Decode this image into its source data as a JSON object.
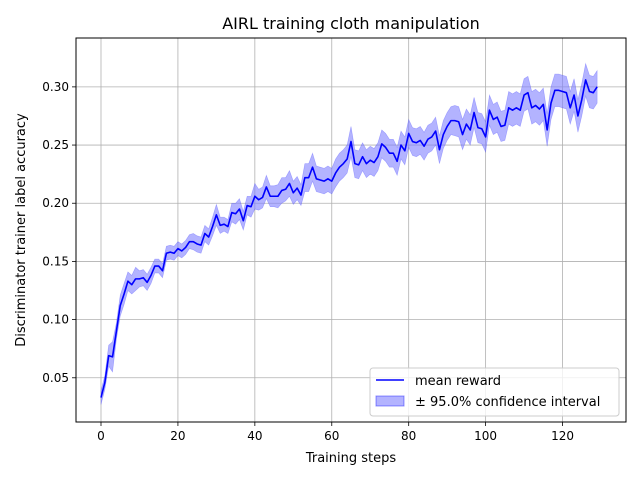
{
  "chart_data": {
    "type": "line",
    "title": "AIRL training cloth manipulation",
    "xlabel": "Training steps",
    "ylabel": "Discriminator trainer label accuracy",
    "xlim": [
      -6.5,
      136.5
    ],
    "ylim": [
      0.012,
      0.342
    ],
    "xticks": [
      0,
      20,
      40,
      60,
      80,
      100,
      120
    ],
    "yticks": [
      0.05,
      0.1,
      0.15,
      0.2,
      0.25,
      0.3
    ],
    "grid": true,
    "legend": {
      "placement": "lower-right"
    },
    "colors": {
      "line": "#0000ff",
      "band": "#8080ff"
    },
    "series": [
      {
        "name": "mean reward",
        "x": [
          0,
          1,
          2,
          3,
          4,
          5,
          6,
          7,
          8,
          9,
          10,
          11,
          12,
          13,
          14,
          15,
          16,
          17,
          18,
          19,
          20,
          21,
          22,
          23,
          24,
          25,
          26,
          27,
          28,
          29,
          30,
          31,
          32,
          33,
          34,
          35,
          36,
          37,
          38,
          39,
          40,
          41,
          42,
          43,
          44,
          45,
          46,
          47,
          48,
          49,
          50,
          51,
          52,
          53,
          54,
          55,
          56,
          57,
          58,
          59,
          60,
          61,
          62,
          63,
          64,
          65,
          66,
          67,
          68,
          69,
          70,
          71,
          72,
          73,
          74,
          75,
          76,
          77,
          78,
          79,
          80,
          81,
          82,
          83,
          84,
          85,
          86,
          87,
          88,
          89,
          90,
          91,
          92,
          93,
          94,
          95,
          96,
          97,
          98,
          99,
          100,
          101,
          102,
          103,
          104,
          105,
          106,
          107,
          108,
          109,
          110,
          111,
          112,
          113,
          114,
          115,
          116,
          117,
          118,
          119,
          120,
          121,
          122,
          123,
          124,
          125,
          126,
          127,
          128,
          129
        ],
        "y": [
          0.033,
          0.046,
          0.069,
          0.068,
          0.09,
          0.112,
          0.122,
          0.133,
          0.13,
          0.135,
          0.135,
          0.136,
          0.132,
          0.138,
          0.146,
          0.146,
          0.142,
          0.157,
          0.158,
          0.157,
          0.161,
          0.159,
          0.162,
          0.167,
          0.167,
          0.165,
          0.164,
          0.174,
          0.171,
          0.18,
          0.19,
          0.181,
          0.182,
          0.18,
          0.192,
          0.191,
          0.195,
          0.185,
          0.198,
          0.197,
          0.206,
          0.203,
          0.205,
          0.214,
          0.206,
          0.206,
          0.206,
          0.211,
          0.212,
          0.217,
          0.209,
          0.213,
          0.207,
          0.222,
          0.222,
          0.231,
          0.221,
          0.22,
          0.219,
          0.221,
          0.219,
          0.226,
          0.231,
          0.234,
          0.238,
          0.253,
          0.234,
          0.233,
          0.24,
          0.234,
          0.237,
          0.235,
          0.24,
          0.251,
          0.248,
          0.243,
          0.243,
          0.236,
          0.25,
          0.245,
          0.26,
          0.253,
          0.252,
          0.254,
          0.249,
          0.255,
          0.257,
          0.262,
          0.246,
          0.259,
          0.266,
          0.271,
          0.271,
          0.27,
          0.259,
          0.268,
          0.263,
          0.278,
          0.265,
          0.264,
          0.257,
          0.28,
          0.272,
          0.274,
          0.266,
          0.267,
          0.282,
          0.28,
          0.282,
          0.28,
          0.293,
          0.295,
          0.282,
          0.284,
          0.281,
          0.285,
          0.263,
          0.286,
          0.297,
          0.297,
          0.296,
          0.295,
          0.282,
          0.293,
          0.275,
          0.289,
          0.306,
          0.296,
          0.295,
          0.3
        ]
      },
      {
        "name": "± 95.0% confidence interval",
        "x": [
          0,
          1,
          2,
          3,
          4,
          5,
          6,
          7,
          8,
          9,
          10,
          11,
          12,
          13,
          14,
          15,
          16,
          17,
          18,
          19,
          20,
          21,
          22,
          23,
          24,
          25,
          26,
          27,
          28,
          29,
          30,
          31,
          32,
          33,
          34,
          35,
          36,
          37,
          38,
          39,
          40,
          41,
          42,
          43,
          44,
          45,
          46,
          47,
          48,
          49,
          50,
          51,
          52,
          53,
          54,
          55,
          56,
          57,
          58,
          59,
          60,
          61,
          62,
          63,
          64,
          65,
          66,
          67,
          68,
          69,
          70,
          71,
          72,
          73,
          74,
          75,
          76,
          77,
          78,
          79,
          80,
          81,
          82,
          83,
          84,
          85,
          86,
          87,
          88,
          89,
          90,
          91,
          92,
          93,
          94,
          95,
          96,
          97,
          98,
          99,
          100,
          101,
          102,
          103,
          104,
          105,
          106,
          107,
          108,
          109,
          110,
          111,
          112,
          113,
          114,
          115,
          116,
          117,
          118,
          119,
          120,
          121,
          122,
          123,
          124,
          125,
          126,
          127,
          128,
          129
        ],
        "lower": [
          0.027,
          0.04,
          0.06,
          0.055,
          0.083,
          0.103,
          0.113,
          0.125,
          0.122,
          0.125,
          0.128,
          0.129,
          0.125,
          0.131,
          0.14,
          0.14,
          0.136,
          0.151,
          0.152,
          0.151,
          0.155,
          0.153,
          0.156,
          0.161,
          0.16,
          0.158,
          0.157,
          0.167,
          0.164,
          0.172,
          0.181,
          0.174,
          0.176,
          0.174,
          0.184,
          0.182,
          0.186,
          0.177,
          0.19,
          0.188,
          0.195,
          0.194,
          0.196,
          0.204,
          0.197,
          0.197,
          0.196,
          0.2,
          0.202,
          0.206,
          0.199,
          0.203,
          0.198,
          0.21,
          0.21,
          0.219,
          0.21,
          0.209,
          0.208,
          0.21,
          0.208,
          0.214,
          0.219,
          0.222,
          0.226,
          0.24,
          0.222,
          0.221,
          0.228,
          0.222,
          0.225,
          0.223,
          0.228,
          0.239,
          0.236,
          0.231,
          0.231,
          0.224,
          0.238,
          0.233,
          0.248,
          0.241,
          0.24,
          0.242,
          0.237,
          0.243,
          0.245,
          0.25,
          0.234,
          0.247,
          0.254,
          0.259,
          0.258,
          0.257,
          0.246,
          0.255,
          0.25,
          0.265,
          0.252,
          0.251,
          0.244,
          0.267,
          0.259,
          0.261,
          0.253,
          0.254,
          0.268,
          0.266,
          0.268,
          0.266,
          0.279,
          0.281,
          0.268,
          0.27,
          0.267,
          0.271,
          0.249,
          0.272,
          0.283,
          0.283,
          0.282,
          0.281,
          0.268,
          0.279,
          0.261,
          0.275,
          0.292,
          0.282,
          0.281,
          0.286
        ],
        "upper": [
          0.039,
          0.052,
          0.078,
          0.081,
          0.097,
          0.121,
          0.131,
          0.141,
          0.138,
          0.145,
          0.142,
          0.143,
          0.139,
          0.145,
          0.152,
          0.152,
          0.148,
          0.163,
          0.164,
          0.163,
          0.167,
          0.165,
          0.168,
          0.173,
          0.174,
          0.172,
          0.171,
          0.181,
          0.178,
          0.188,
          0.199,
          0.188,
          0.188,
          0.186,
          0.2,
          0.2,
          0.204,
          0.193,
          0.206,
          0.206,
          0.217,
          0.212,
          0.214,
          0.224,
          0.215,
          0.215,
          0.216,
          0.222,
          0.222,
          0.228,
          0.219,
          0.223,
          0.216,
          0.234,
          0.234,
          0.243,
          0.232,
          0.231,
          0.23,
          0.232,
          0.23,
          0.238,
          0.243,
          0.246,
          0.25,
          0.266,
          0.246,
          0.245,
          0.252,
          0.246,
          0.249,
          0.247,
          0.252,
          0.263,
          0.26,
          0.255,
          0.255,
          0.248,
          0.262,
          0.257,
          0.272,
          0.265,
          0.264,
          0.266,
          0.261,
          0.267,
          0.269,
          0.274,
          0.258,
          0.271,
          0.278,
          0.283,
          0.284,
          0.283,
          0.272,
          0.281,
          0.276,
          0.291,
          0.278,
          0.277,
          0.27,
          0.293,
          0.285,
          0.287,
          0.279,
          0.28,
          0.296,
          0.294,
          0.296,
          0.294,
          0.307,
          0.309,
          0.296,
          0.298,
          0.295,
          0.299,
          0.277,
          0.3,
          0.311,
          0.311,
          0.31,
          0.309,
          0.296,
          0.307,
          0.289,
          0.303,
          0.32,
          0.31,
          0.309,
          0.314
        ]
      }
    ]
  }
}
